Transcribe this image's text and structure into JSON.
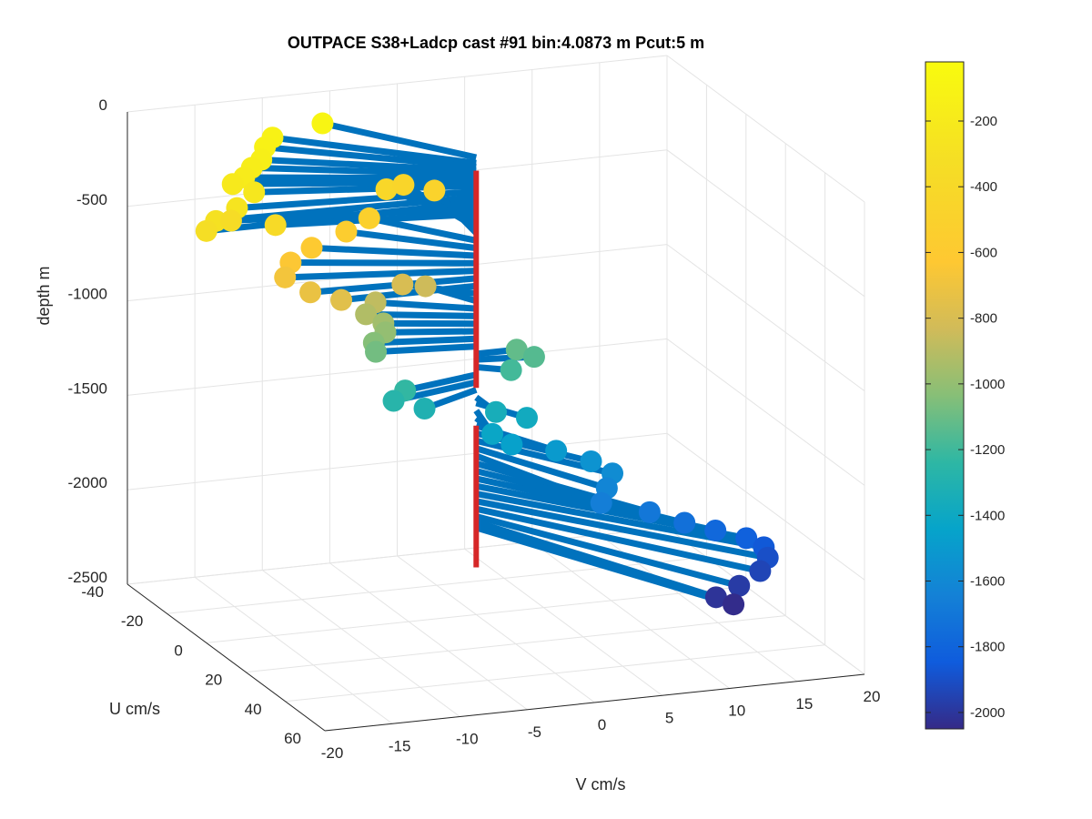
{
  "chart_data": {
    "type": "scatter",
    "projection": "3d",
    "title": "OUTPACE S38+Ladcp cast #91 bin:4.0873 m  Pcut:5 m",
    "xlabel": "V cm/s",
    "ylabel": "U cm/s",
    "zlabel": "depth m",
    "xlim": [
      -20,
      20
    ],
    "ylim": [
      -40,
      60
    ],
    "zlim": [
      -2500,
      0
    ],
    "xticks": [
      "-20",
      "-15",
      "-10",
      "-5",
      "0",
      "5",
      "10",
      "15",
      "20"
    ],
    "yticks": [
      "-40",
      "-20",
      "0",
      "20",
      "40",
      "60"
    ],
    "zticks": [
      "0",
      "-500",
      "-1000",
      "-1500",
      "-2000",
      "-2500"
    ],
    "grid": true,
    "colorbar": {
      "range": [
        -2050,
        -20
      ],
      "ticks": [
        "-200",
        "-400",
        "-600",
        "-800",
        "-1000",
        "-1200",
        "-1400",
        "-1600",
        "-1800",
        "-2000"
      ],
      "colormap": "parula"
    },
    "series": [
      {
        "marker": "circle",
        "vector_color": "#0072BD",
        "points": [
          {
            "depth": -80,
            "v": -7,
            "u": -30
          },
          {
            "depth": -110,
            "v": -11,
            "u": -28
          },
          {
            "depth": -130,
            "v": -12,
            "u": -25
          },
          {
            "depth": -150,
            "v": -13,
            "u": -20
          },
          {
            "depth": -170,
            "v": -14,
            "u": -18
          },
          {
            "depth": -190,
            "v": -15,
            "u": -15
          },
          {
            "depth": -210,
            "v": -16,
            "u": -14
          },
          {
            "depth": -230,
            "v": -15,
            "u": -10
          },
          {
            "depth": -260,
            "v": -17,
            "u": -5
          },
          {
            "depth": -290,
            "v": -19,
            "u": -2
          },
          {
            "depth": -320,
            "v": -20,
            "u": 0
          },
          {
            "depth": -350,
            "v": -17,
            "u": -8
          },
          {
            "depth": -380,
            "v": -14,
            "u": -6
          },
          {
            "depth": -420,
            "v": -3,
            "u": -25
          },
          {
            "depth": -450,
            "v": -1,
            "u": -30
          },
          {
            "depth": -480,
            "v": 1,
            "u": -28
          },
          {
            "depth": -520,
            "v": -5,
            "u": -20
          },
          {
            "depth": -560,
            "v": -7,
            "u": -18
          },
          {
            "depth": -600,
            "v": -10,
            "u": -15
          },
          {
            "depth": -640,
            "v": -12,
            "u": -12
          },
          {
            "depth": -680,
            "v": -13,
            "u": -8
          },
          {
            "depth": -720,
            "v": -12,
            "u": -2
          },
          {
            "depth": -760,
            "v": -10,
            "u": 0
          },
          {
            "depth": -800,
            "v": -4,
            "u": -10
          },
          {
            "depth": -840,
            "v": -2,
            "u": -12
          },
          {
            "depth": -880,
            "v": -6,
            "u": -10
          },
          {
            "depth": -920,
            "v": -7,
            "u": -8
          },
          {
            "depth": -960,
            "v": -6,
            "u": -6
          },
          {
            "depth": -1000,
            "v": -6,
            "u": -5
          },
          {
            "depth": -1040,
            "v": -7,
            "u": -4
          },
          {
            "depth": -1080,
            "v": -7,
            "u": -3
          },
          {
            "depth": -1120,
            "v": 3,
            "u": 0
          },
          {
            "depth": -1150,
            "v": 4,
            "u": 2
          },
          {
            "depth": -1190,
            "v": 2,
            "u": 4
          },
          {
            "depth": -1230,
            "v": -6,
            "u": 5
          },
          {
            "depth": -1270,
            "v": -7,
            "u": 6
          },
          {
            "depth": -1310,
            "v": -5,
            "u": 8
          },
          {
            "depth": -1350,
            "v": 0,
            "u": 10
          },
          {
            "depth": -1380,
            "v": 2,
            "u": 12
          },
          {
            "depth": -1420,
            "v": -1,
            "u": 15
          },
          {
            "depth": -1460,
            "v": 0,
            "u": 18
          },
          {
            "depth": -1500,
            "v": 3,
            "u": 20
          },
          {
            "depth": -1540,
            "v": 5,
            "u": 24
          },
          {
            "depth": -1580,
            "v": 6,
            "u": 28
          },
          {
            "depth": -1620,
            "v": 5,
            "u": 32
          },
          {
            "depth": -1660,
            "v": 4,
            "u": 36
          },
          {
            "depth": -1700,
            "v": 7,
            "u": 40
          },
          {
            "depth": -1740,
            "v": 9,
            "u": 44
          },
          {
            "depth": -1780,
            "v": 11,
            "u": 46
          },
          {
            "depth": -1820,
            "v": 13,
            "u": 48
          },
          {
            "depth": -1860,
            "v": 14,
            "u": 50
          },
          {
            "depth": -1900,
            "v": 14,
            "u": 52
          },
          {
            "depth": -1940,
            "v": 13,
            "u": 55
          },
          {
            "depth": -1980,
            "v": 11,
            "u": 58
          },
          {
            "depth": -2010,
            "v": 9,
            "u": 60
          },
          {
            "depth": -2040,
            "v": 10,
            "u": 62
          }
        ]
      },
      {
        "type": "line",
        "color": "#D62728",
        "points": [
          {
            "depth": -150,
            "v": 0,
            "u": 0
          },
          {
            "depth": -1300,
            "v": 0,
            "u": 0
          }
        ]
      },
      {
        "type": "line",
        "color": "#D62728",
        "points": [
          {
            "depth": -1500,
            "v": 0,
            "u": 0
          },
          {
            "depth": -2250,
            "v": 0,
            "u": 0
          }
        ]
      }
    ]
  }
}
